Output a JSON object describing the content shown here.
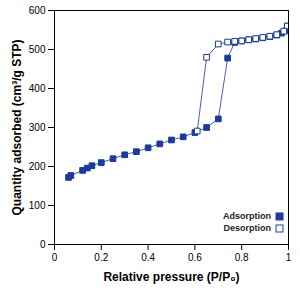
{
  "chart_data": {
    "type": "scatter",
    "x_label": "Relative pressure (P/P₀)",
    "y_label": "Quantity adsorbed (cm³/g STP)",
    "xlim": [
      0,
      1
    ],
    "xticks": [
      0,
      0.2,
      0.4,
      0.6,
      0.8,
      1
    ],
    "ylim": [
      0,
      600
    ],
    "yticks": [
      0,
      100,
      200,
      300,
      400,
      500,
      600
    ],
    "legend": "bottom-right",
    "series": [
      {
        "name": "Adsorption",
        "color": "#1a3a9e",
        "marker": "square",
        "line_style": "solid",
        "x": [
          0.06,
          0.07,
          0.12,
          0.14,
          0.16,
          0.2,
          0.25,
          0.3,
          0.35,
          0.4,
          0.45,
          0.5,
          0.55,
          0.6,
          0.65,
          0.7,
          0.74,
          0.77,
          0.8,
          0.83,
          0.86,
          0.89,
          0.92,
          0.95,
          0.97,
          0.99,
          0.995
        ],
        "values": [
          172,
          177,
          190,
          196,
          202,
          210,
          220,
          230,
          238,
          248,
          258,
          268,
          276,
          287,
          300,
          322,
          478,
          518,
          522,
          525,
          527,
          530,
          533,
          537,
          542,
          548,
          560
        ]
      },
      {
        "name": "Desorption",
        "color": "#1a3a9e",
        "marker": "open_square",
        "line_style": "solid",
        "x": [
          0.995,
          0.98,
          0.95,
          0.92,
          0.89,
          0.86,
          0.83,
          0.8,
          0.77,
          0.74,
          0.7,
          0.65,
          0.61
        ],
        "values": [
          560,
          547,
          538,
          534,
          531,
          528,
          525,
          522,
          521,
          519,
          514,
          480,
          291
        ]
      }
    ]
  }
}
